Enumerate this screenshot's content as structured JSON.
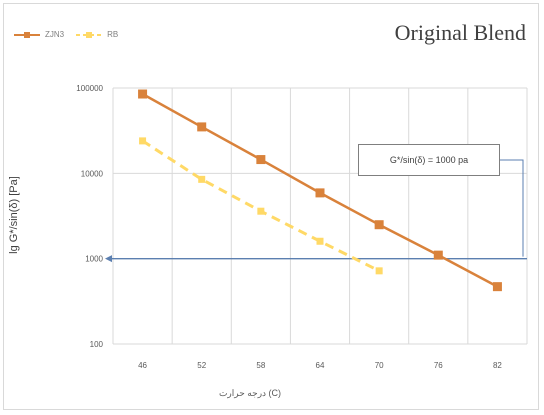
{
  "chart_data": {
    "type": "line",
    "title": "Original Blend",
    "ylabel": "lg G*/sin(δ) [Pa]",
    "xlabel": "درجه حرارت (C)",
    "y_scale": "log",
    "ylim": [
      100,
      100000
    ],
    "y_ticks": [
      "100",
      "1000",
      "10000",
      "100000"
    ],
    "x_ticks": [
      "46",
      "52",
      "58",
      "64",
      "70",
      "76",
      "82"
    ],
    "series": [
      {
        "name": "ZJN3",
        "color": "#d9823b",
        "style": "solid",
        "marker": "square",
        "x": [
          "46",
          "52",
          "58",
          "64",
          "70",
          "76",
          "82"
        ],
        "values": [
          85000,
          35000,
          14500,
          5900,
          2500,
          1100,
          470
        ]
      },
      {
        "name": "RB",
        "color": "#ffd966",
        "style": "dashed",
        "marker": "square",
        "x": [
          "46",
          "52",
          "58",
          "64",
          "70"
        ],
        "values": [
          24000,
          8500,
          3600,
          1600,
          720
        ]
      }
    ],
    "reference_line": {
      "value": 1000,
      "color": "#5b7fb0"
    },
    "annotation": "G*/sin(δ) = 1000 pa",
    "grid": true,
    "legend": "top-left"
  }
}
